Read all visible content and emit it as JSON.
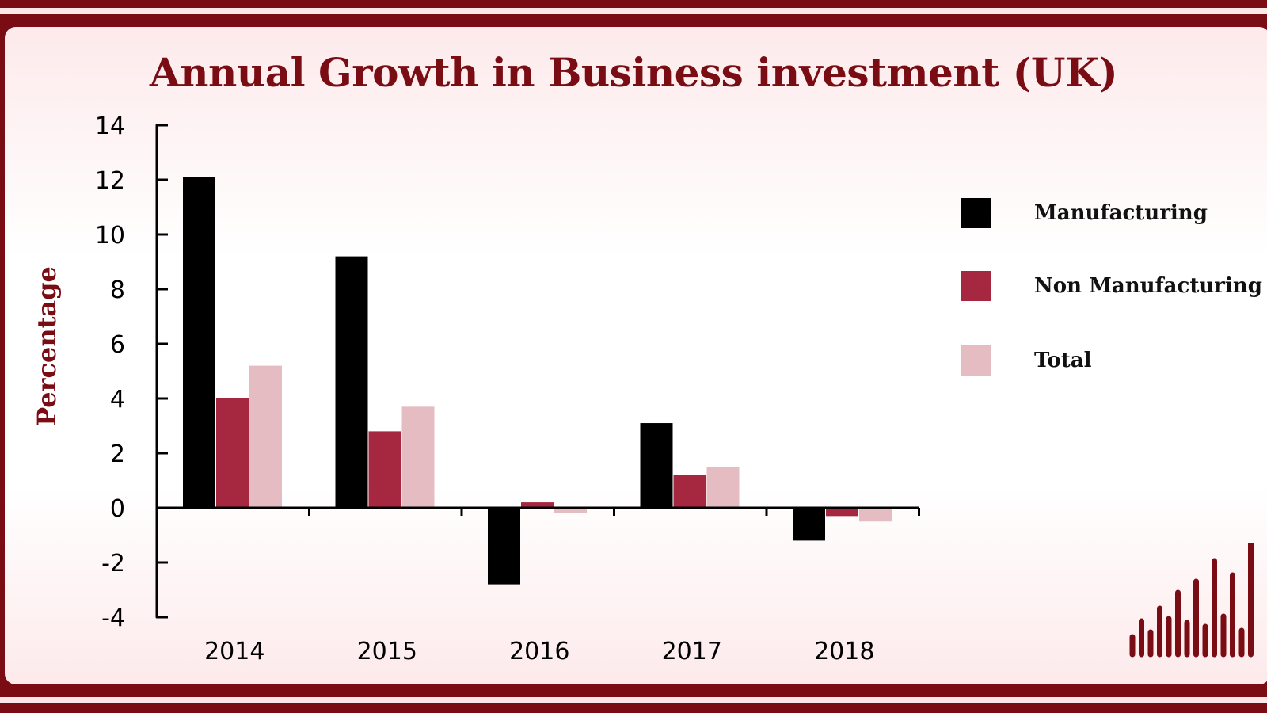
{
  "title": "Annual Growth in Business investment (UK)",
  "chart_data": {
    "type": "bar",
    "title": "Annual Growth in Business investment (UK)",
    "xlabel": "",
    "ylabel": "Percentage",
    "categories": [
      "2014",
      "2015",
      "2016",
      "2017",
      "2018"
    ],
    "series": [
      {
        "name": "Manufacturing",
        "color": "#000000",
        "values": [
          12.1,
          9.2,
          -2.8,
          3.1,
          -1.2
        ]
      },
      {
        "name": "Non Manufacturing",
        "color": "#a52840",
        "values": [
          4.0,
          2.8,
          0.2,
          1.2,
          -0.3
        ]
      },
      {
        "name": "Total",
        "color": "#e5bcc2",
        "values": [
          5.2,
          3.7,
          -0.2,
          1.5,
          -0.5
        ]
      }
    ],
    "ylim": [
      -4,
      14
    ],
    "yticks": [
      "14",
      "12",
      "10",
      "8",
      "6",
      "4",
      "2",
      "0",
      "-2",
      "-4"
    ],
    "grid": false,
    "legend_position": "right"
  },
  "colors": {
    "brand": "#7a0d14",
    "manufacturing": "#000000",
    "non_manufacturing": "#a52840",
    "total": "#e5bcc2"
  },
  "decoration": "bar-pattern-icon"
}
